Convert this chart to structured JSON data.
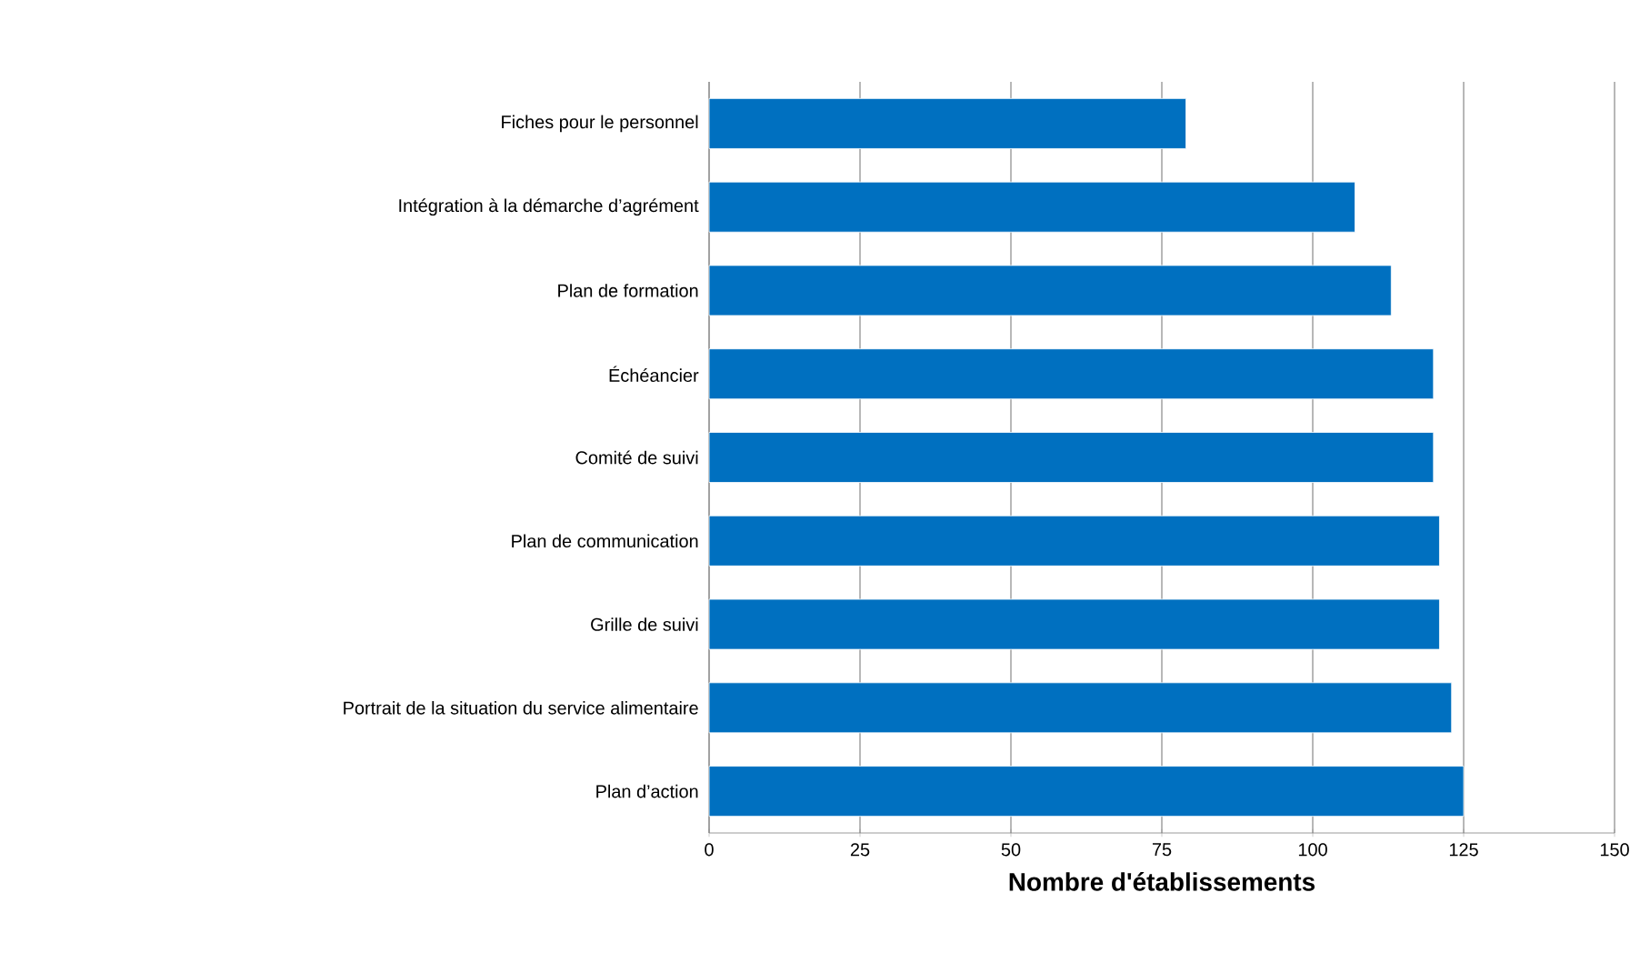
{
  "chart_data": {
    "type": "bar",
    "orientation": "horizontal",
    "xlabel": "Nombre d'établissements",
    "categories": [
      "Fiches pour le personnel",
      "Intégration à la démarche d’agrément",
      "Plan de formation",
      "Échéancier",
      "Comité de suivi",
      "Plan de communication",
      "Grille de suivi",
      "Portrait de la situation du service alimentaire",
      "Plan d’action"
    ],
    "values": [
      79,
      107,
      113,
      120,
      120,
      121,
      121,
      123,
      125
    ],
    "color": "#0070c0",
    "xlim": [
      0,
      150
    ],
    "xticks": [
      0,
      25,
      50,
      75,
      100,
      125,
      150
    ],
    "grid": "x"
  }
}
